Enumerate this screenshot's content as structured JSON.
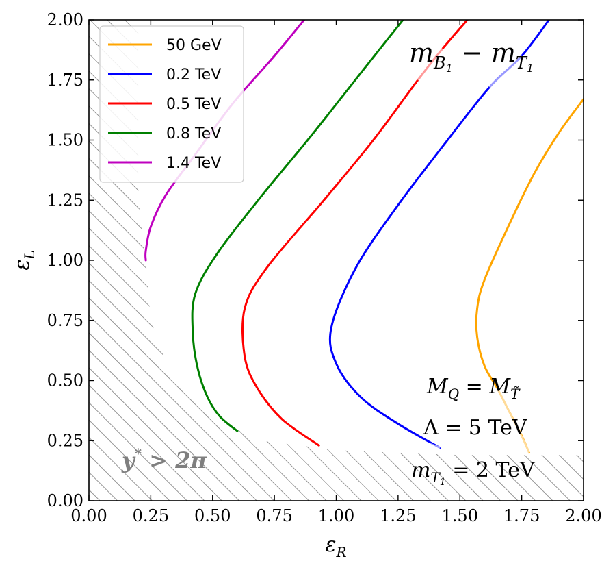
{
  "chart_data": {
    "type": "line",
    "title": "m_{B1} − m_{T1}",
    "xlabel": "ε_R",
    "ylabel": "ε_L",
    "xlim": [
      0,
      2
    ],
    "ylim": [
      0,
      2
    ],
    "xticks": [
      "0.00",
      "0.25",
      "0.50",
      "0.75",
      "1.00",
      "1.25",
      "1.50",
      "1.75",
      "2.00"
    ],
    "yticks": [
      "0.00",
      "0.25",
      "0.50",
      "0.75",
      "1.00",
      "1.25",
      "1.50",
      "1.75",
      "2.00"
    ],
    "legend_position": "top-left",
    "series": [
      {
        "name": "50 GeV",
        "color": "#ffa500",
        "points": [
          [
            2.0,
            1.67
          ],
          [
            1.9,
            1.53
          ],
          [
            1.8,
            1.36
          ],
          [
            1.7,
            1.15
          ],
          [
            1.6,
            0.92
          ],
          [
            1.57,
            0.8
          ],
          [
            1.57,
            0.68
          ],
          [
            1.6,
            0.56
          ],
          [
            1.65,
            0.47
          ],
          [
            1.7,
            0.37
          ],
          [
            1.75,
            0.27
          ],
          [
            1.78,
            0.2
          ]
        ],
        "faded_segments": [
          [
            1.65,
            0.47,
            1.78,
            0.2
          ]
        ]
      },
      {
        "name": "0.2 TeV",
        "color": "#0000ff",
        "points": [
          [
            1.86,
            2.0
          ],
          [
            1.75,
            1.85
          ],
          [
            1.62,
            1.72
          ],
          [
            1.45,
            1.5
          ],
          [
            1.25,
            1.23
          ],
          [
            1.08,
            0.97
          ],
          [
            0.98,
            0.72
          ],
          [
            1.0,
            0.57
          ],
          [
            1.1,
            0.43
          ],
          [
            1.25,
            0.32
          ],
          [
            1.42,
            0.22
          ]
        ],
        "faded_segments": [
          [
            1.62,
            1.72,
            1.75,
            1.85
          ],
          [
            1.28,
            0.27,
            1.42,
            0.22
          ]
        ]
      },
      {
        "name": "0.5 TeV",
        "color": "#ff0000",
        "points": [
          [
            1.53,
            2.0
          ],
          [
            1.43,
            1.88
          ],
          [
            1.33,
            1.75
          ],
          [
            1.15,
            1.5
          ],
          [
            0.95,
            1.25
          ],
          [
            0.72,
            0.97
          ],
          [
            0.63,
            0.8
          ],
          [
            0.63,
            0.6
          ],
          [
            0.68,
            0.47
          ],
          [
            0.78,
            0.34
          ],
          [
            0.93,
            0.23
          ]
        ],
        "faded_segments": [
          [
            1.33,
            1.75,
            1.43,
            1.88
          ]
        ]
      },
      {
        "name": "0.8 TeV",
        "color": "#008000",
        "points": [
          [
            1.27,
            2.0
          ],
          [
            1.1,
            1.78
          ],
          [
            0.9,
            1.52
          ],
          [
            0.7,
            1.27
          ],
          [
            0.52,
            1.03
          ],
          [
            0.43,
            0.86
          ],
          [
            0.42,
            0.7
          ],
          [
            0.44,
            0.55
          ],
          [
            0.48,
            0.43
          ],
          [
            0.53,
            0.35
          ],
          [
            0.6,
            0.29
          ]
        ],
        "faded_segments": []
      },
      {
        "name": "1.4 TeV",
        "color": "#bf00bf",
        "points": [
          [
            0.87,
            2.0
          ],
          [
            0.75,
            1.85
          ],
          [
            0.58,
            1.65
          ],
          [
            0.43,
            1.44
          ],
          [
            0.31,
            1.27
          ],
          [
            0.25,
            1.14
          ],
          [
            0.23,
            1.04
          ],
          [
            0.23,
            1.0
          ]
        ],
        "faded_segments": []
      }
    ],
    "excluded_region": {
      "label": "y* > 2π",
      "boundary": [
        [
          0.0,
          2.0
        ],
        [
          0.2,
          2.0
        ],
        [
          0.2,
          1.25
        ],
        [
          0.23,
          1.0
        ],
        [
          0.25,
          0.75
        ],
        [
          0.32,
          0.55
        ],
        [
          0.42,
          0.42
        ],
        [
          0.55,
          0.32
        ],
        [
          0.7,
          0.25
        ],
        [
          1.0,
          0.21
        ],
        [
          1.5,
          0.19
        ],
        [
          2.0,
          0.19
        ]
      ]
    },
    "annotations": {
      "title": "m_{B₁} − m_{T₁}",
      "mass_relation": "M_Q = M_T̃",
      "lambda": "Λ = 5 TeV",
      "mass_t1": "m_{T₁} = 2 TeV"
    }
  }
}
